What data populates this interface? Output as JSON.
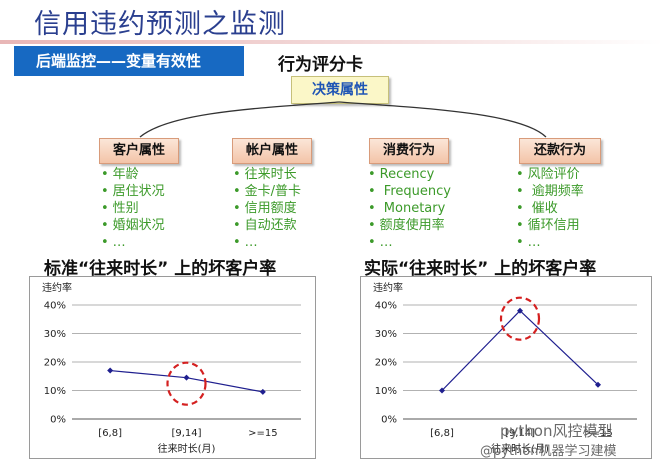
{
  "title": "信用违约预测之监测",
  "section": "后端监控——变量有效性",
  "scorecard": {
    "title": "行为评分卡",
    "decision": "决策属性"
  },
  "categories": [
    {
      "label": "客户属性",
      "items": [
        "年龄",
        "居住状况",
        "性别",
        "婚姻状况",
        "…"
      ]
    },
    {
      "label": "帐户属性",
      "items": [
        "往来时长",
        "金卡/普卡",
        "信用额度",
        "自动还款",
        "…"
      ]
    },
    {
      "label": "消费行为",
      "items": [
        "Recency",
        " Frequency",
        " Monetary",
        "额度使用率",
        "…"
      ]
    },
    {
      "label": "还款行为",
      "items": [
        "风险评价",
        " 逾期频率",
        " 催收",
        "循环信用",
        "…"
      ]
    }
  ],
  "charts": [
    {
      "heading": "标准“往来时长” 上的坏客户率",
      "chart_data": {
        "type": "line",
        "ylabel": "违约率",
        "xlabel": "往来时长(月)",
        "categories": [
          "[6,8]",
          "[9,14]",
          ">=15"
        ],
        "values": [
          0.17,
          0.145,
          0.095
        ],
        "ylim": [
          0,
          0.4
        ],
        "yticks": [
          "0%",
          "10%",
          "20%",
          "30%",
          "40%"
        ],
        "highlight_index": 1,
        "line_color": "#1f1f8f",
        "highlight_color": "#d42020"
      }
    },
    {
      "heading": "实际“往来时长” 上的坏客户率",
      "chart_data": {
        "type": "line",
        "ylabel": "违约率",
        "xlabel": "往来时长(月)",
        "categories": [
          "[6,8]",
          "[9,14]",
          ">=15"
        ],
        "values": [
          0.1,
          0.38,
          0.12
        ],
        "ylim": [
          0,
          0.4
        ],
        "yticks": [
          "0%",
          "10%",
          "20%",
          "30%",
          "40%"
        ],
        "highlight_index": 1,
        "line_color": "#1f1f8f",
        "highlight_color": "#d42020"
      }
    }
  ],
  "watermark": {
    "line1": "python风控模型",
    "line2": "@python机器学习建模"
  }
}
